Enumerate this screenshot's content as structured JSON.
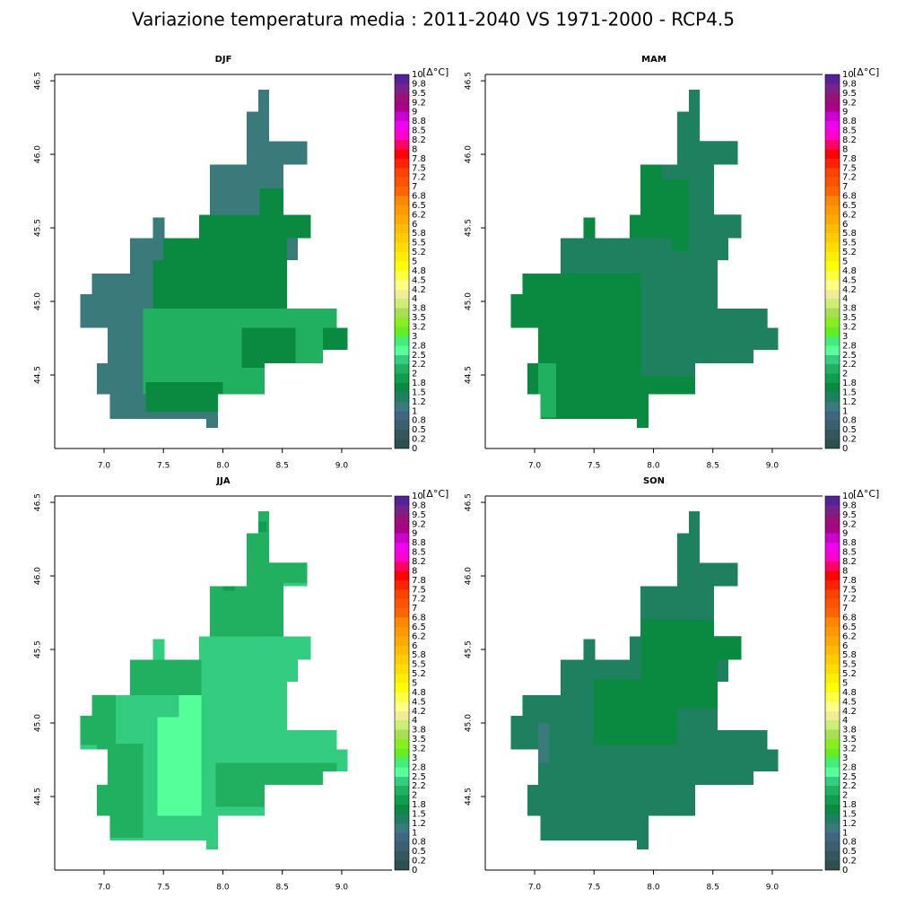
{
  "title": "Variazione temperatura media  : 2011-2040  VS 1971-2000 - RCP4.5",
  "colorbar": {
    "unit": "[Δ°C]",
    "ticks": [
      0,
      {
        "value": 0.25,
        "label": "0.2"
      },
      0.5,
      {
        "value": 0.75,
        "label": "0.8"
      },
      1,
      {
        "value": 1.25,
        "label": "1.2"
      },
      1.5,
      {
        "value": 1.75,
        "label": "1.8"
      },
      2,
      {
        "value": 2.25,
        "label": "2.2"
      },
      2.5,
      {
        "value": 2.75,
        "label": "2.8"
      },
      3,
      {
        "value": 3.25,
        "label": "3.2"
      },
      3.5,
      {
        "value": 3.75,
        "label": "3.8"
      },
      4,
      {
        "value": 4.25,
        "label": "4.2"
      },
      4.5,
      {
        "value": 4.75,
        "label": "4.8"
      },
      5,
      {
        "value": 5.25,
        "label": "5.2"
      },
      5.5,
      {
        "value": 5.75,
        "label": "5.8"
      },
      6,
      {
        "value": 6.25,
        "label": "6.2"
      },
      6.5,
      {
        "value": 6.75,
        "label": "6.8"
      },
      7,
      {
        "value": 7.25,
        "label": "7.2"
      },
      7.5,
      {
        "value": 7.75,
        "label": "7.8"
      },
      8,
      {
        "value": 8.25,
        "label": "8.2"
      },
      8.5,
      {
        "value": 8.75,
        "label": "8.8"
      },
      9,
      {
        "value": 9.25,
        "label": "9.2"
      },
      9.5,
      {
        "value": 9.75,
        "label": "9.8"
      },
      10
    ],
    "colors": [
      "#2f4f4f",
      "#34565c",
      "#3a5f6e",
      "#3f6680",
      "#3a7a7a",
      "#1f8060",
      "#0a8a40",
      "#0d9e4f",
      "#20b060",
      "#33cc80",
      "#55ff99",
      "#44ee77",
      "#66ee22",
      "#88ee22",
      "#aadd55",
      "#ccee77",
      "#eeee99",
      "#ffff88",
      "#ffff44",
      "#ffff00",
      "#ffee00",
      "#ffdd00",
      "#ffcc00",
      "#ffbb00",
      "#ffaa00",
      "#ff9900",
      "#ff8800",
      "#ff6600",
      "#ff5500",
      "#ff4400",
      "#ff2200",
      "#ff0000",
      "#ff0066",
      "#ff00cc",
      "#ee00ee",
      "#cc00cc",
      "#aa0088",
      "#991177",
      "#772288",
      "#552299"
    ]
  },
  "domain": [
    {
      "lon": [
        8.3,
        8.39
      ],
      "lat": [
        46.29,
        46.44
      ]
    },
    {
      "lon": [
        8.2,
        8.39
      ],
      "lat": [
        46.09,
        46.29
      ]
    },
    {
      "lon": [
        8.2,
        8.71
      ],
      "lat": [
        45.93,
        46.09
      ]
    },
    {
      "lon": [
        7.89,
        8.51
      ],
      "lat": [
        45.59,
        45.93
      ]
    },
    {
      "lon": [
        7.8,
        8.74
      ],
      "lat": [
        45.43,
        45.59
      ]
    },
    {
      "lon": [
        7.41,
        7.51
      ],
      "lat": [
        45.43,
        45.57
      ]
    },
    {
      "lon": [
        7.22,
        8.63
      ],
      "lat": [
        45.28,
        45.43
      ]
    },
    {
      "lon": [
        7.22,
        8.54
      ],
      "lat": [
        45.19,
        45.28
      ]
    },
    {
      "lon": [
        6.9,
        8.54
      ],
      "lat": [
        45.05,
        45.19
      ]
    },
    {
      "lon": [
        6.8,
        8.54
      ],
      "lat": [
        44.95,
        45.05
      ]
    },
    {
      "lon": [
        6.8,
        8.96
      ],
      "lat": [
        44.82,
        44.95
      ]
    },
    {
      "lon": [
        7.03,
        9.05
      ],
      "lat": [
        44.67,
        44.82
      ]
    },
    {
      "lon": [
        7.03,
        8.84
      ],
      "lat": [
        44.58,
        44.67
      ]
    },
    {
      "lon": [
        6.94,
        8.35
      ],
      "lat": [
        44.37,
        44.58
      ]
    },
    {
      "lon": [
        7.05,
        7.96
      ],
      "lat": [
        44.2,
        44.37
      ]
    },
    {
      "lon": [
        7.86,
        7.96
      ],
      "lat": [
        44.14,
        44.2
      ]
    }
  ],
  "chart_data": [
    {
      "type": "raster",
      "title": "DJF",
      "xlim": [
        6.585,
        9.423
      ],
      "ylim": [
        44.0,
        46.543
      ],
      "xticks": [
        {
          "value": 7,
          "label": "7.0"
        },
        7.5,
        {
          "value": 8,
          "label": "8.0"
        },
        8.5,
        {
          "value": 9,
          "label": "9.0"
        }
      ],
      "yticks": [
        44.5,
        {
          "value": 45,
          "label": "45.0"
        },
        45.5,
        {
          "value": 46,
          "label": "46.0"
        },
        46.5
      ],
      "base": 1.1,
      "zones": [
        {
          "lon": [
            7.5,
            8.54
          ],
          "lat": [
            45.28,
            45.43
          ],
          "value": 1.6
        },
        {
          "lon": [
            7.41,
            8.54
          ],
          "lat": [
            44.95,
            45.28
          ],
          "value": 1.6
        },
        {
          "lon": [
            7.8,
            8.74
          ],
          "lat": [
            45.43,
            45.59
          ],
          "value": 1.6
        },
        {
          "lon": [
            8.31,
            8.51
          ],
          "lat": [
            45.59,
            45.77
          ],
          "value": 1.6
        },
        {
          "lon": [
            7.33,
            8.96
          ],
          "lat": [
            44.37,
            44.95
          ],
          "value": 2.1
        },
        {
          "lon": [
            8.16,
            8.61
          ],
          "lat": [
            44.55,
            44.82
          ],
          "value": 1.6
        },
        {
          "lon": [
            8.84,
            9.05
          ],
          "lat": [
            44.67,
            44.82
          ],
          "value": 1.6
        },
        {
          "lon": [
            7.35,
            8.0
          ],
          "lat": [
            44.25,
            44.45
          ],
          "value": 1.6
        }
      ]
    },
    {
      "type": "raster",
      "title": "MAM",
      "xlim": [
        6.585,
        9.423
      ],
      "ylim": [
        44.0,
        46.543
      ],
      "xticks": [
        {
          "value": 7,
          "label": "7.0"
        },
        7.5,
        {
          "value": 8,
          "label": "8.0"
        },
        8.5,
        {
          "value": 9,
          "label": "9.0"
        }
      ],
      "yticks": [
        44.5,
        {
          "value": 45,
          "label": "45.0"
        },
        45.5,
        {
          "value": 46,
          "label": "46.0"
        },
        46.5
      ],
      "base": 1.6,
      "zones": [
        {
          "lon": [
            7.9,
            9.05
          ],
          "lat": [
            44.49,
            45.34
          ],
          "value": 1.4
        },
        {
          "lon": [
            8.07,
            8.73
          ],
          "lat": [
            45.83,
            46.44
          ],
          "value": 1.4
        },
        {
          "lon": [
            7.22,
            8.16
          ],
          "lat": [
            45.19,
            45.43
          ],
          "value": 1.4
        },
        {
          "lon": [
            8.3,
            8.74
          ],
          "lat": [
            45.34,
            45.93
          ],
          "value": 1.4
        },
        {
          "lon": [
            7.03,
            7.18
          ],
          "lat": [
            44.21,
            44.58
          ],
          "value": 2.1
        }
      ]
    },
    {
      "type": "raster",
      "title": "JJA",
      "xlim": [
        6.585,
        9.423
      ],
      "ylim": [
        44.0,
        46.543
      ],
      "xticks": [
        {
          "value": 7,
          "label": "7.0"
        },
        7.5,
        {
          "value": 8,
          "label": "8.0"
        },
        8.5,
        {
          "value": 9,
          "label": "9.0"
        }
      ],
      "yticks": [
        44.5,
        {
          "value": 45,
          "label": "45.0"
        },
        45.5,
        {
          "value": 46,
          "label": "46.0"
        },
        46.5
      ],
      "base": 2.3,
      "zones": [
        {
          "lon": [
            7.45,
            7.82
          ],
          "lat": [
            44.37,
            45.04
          ],
          "value": 2.6
        },
        {
          "lon": [
            7.63,
            7.82
          ],
          "lat": [
            45.04,
            45.28
          ],
          "value": 2.6
        },
        {
          "lon": [
            6.8,
            7.1
          ],
          "lat": [
            44.85,
            45.22
          ],
          "value": 2.1
        },
        {
          "lon": [
            7.89,
            8.51
          ],
          "lat": [
            45.59,
            46.01
          ],
          "value": 2.1
        },
        {
          "lon": [
            8.1,
            8.71
          ],
          "lat": [
            45.95,
            46.13
          ],
          "value": 2.1
        },
        {
          "lon": [
            8.2,
            8.39
          ],
          "lat": [
            46.13,
            46.44
          ],
          "value": 2.1
        },
        {
          "lon": [
            7.94,
            8.96
          ],
          "lat": [
            44.43,
            44.73
          ],
          "value": 2.1
        },
        {
          "lon": [
            6.94,
            7.33
          ],
          "lat": [
            44.22,
            44.86
          ],
          "value": 2.1
        },
        {
          "lon": [
            7.22,
            7.82
          ],
          "lat": [
            45.19,
            45.43
          ],
          "value": 2.1
        },
        {
          "lon": [
            8.0,
            8.1
          ],
          "lat": [
            45.9,
            46.09
          ],
          "value": 1.8
        },
        {
          "lon": [
            8.3,
            8.37
          ],
          "lat": [
            46.3,
            46.37
          ],
          "value": 1.8
        }
      ]
    },
    {
      "type": "raster",
      "title": "SON",
      "xlim": [
        6.585,
        9.423
      ],
      "ylim": [
        44.0,
        46.543
      ],
      "xticks": [
        {
          "value": 7,
          "label": "7.0"
        },
        7.5,
        {
          "value": 8,
          "label": "8.0"
        },
        8.5,
        {
          "value": 9,
          "label": "9.0"
        }
      ],
      "yticks": [
        44.5,
        {
          "value": 45,
          "label": "45.0"
        },
        45.5,
        {
          "value": 46,
          "label": "46.0"
        },
        46.5
      ],
      "base": 1.4,
      "zones": [
        {
          "lon": [
            7.9,
            8.54
          ],
          "lat": [
            45.1,
            45.7
          ],
          "value": 1.6
        },
        {
          "lon": [
            7.5,
            8.2
          ],
          "lat": [
            44.85,
            45.3
          ],
          "value": 1.6
        },
        {
          "lon": [
            8.54,
            8.74
          ],
          "lat": [
            45.43,
            45.6
          ],
          "value": 1.6
        },
        {
          "lon": [
            7.03,
            7.12
          ],
          "lat": [
            44.73,
            45.0
          ],
          "value": 1.2
        }
      ]
    }
  ]
}
